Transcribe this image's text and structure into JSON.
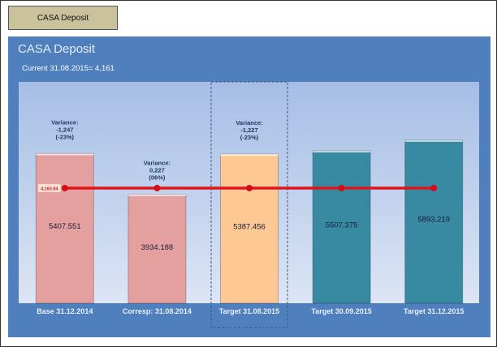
{
  "header_button": "CASA Deposit",
  "panel": {
    "title": "CASA Deposit",
    "current": "Current 31.08.2015= 4,161"
  },
  "chart_data": {
    "type": "bar",
    "categories": [
      "Base 31.12.2014",
      "Corresp: 31.08.2014",
      "Target 31.08.2015",
      "Target 30.09.2015",
      "Target 31.12.2015"
    ],
    "values": [
      5407.551,
      3934.188,
      5387.456,
      5507.375,
      5893.219
    ],
    "value_labels": [
      "5407.551",
      "3934.188",
      "5387.456",
      "5507.375",
      "5893.219"
    ],
    "bar_colors": [
      "#e4a09f",
      "#e4a09f",
      "#fec894",
      "#388aa3",
      "#388aa3"
    ],
    "line": {
      "value": 4160.84,
      "label": "4,160.84",
      "color": "#e0141b"
    },
    "annotations": [
      {
        "category": 0,
        "lines": [
          "Variance:",
          "-1,247",
          "(-23%)"
        ]
      },
      {
        "category": 1,
        "lines": [
          "Variance:",
          "0,227",
          "(06%)"
        ]
      },
      {
        "category": 2,
        "lines": [
          "Variance:",
          "-1,227",
          "(-23%)"
        ]
      }
    ],
    "highlighted_category": 2,
    "ylim": [
      0,
      8000
    ],
    "grid": false
  }
}
